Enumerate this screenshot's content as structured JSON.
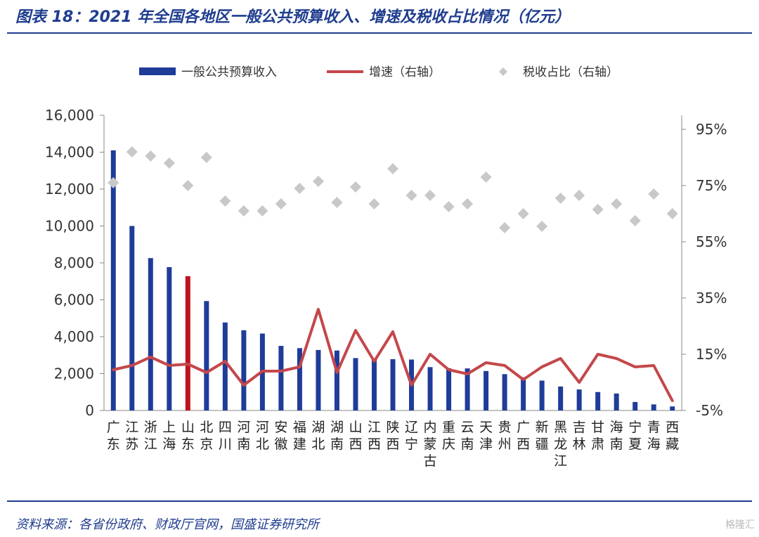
{
  "header": {
    "title": "图表 18：2021 年全国各地区一般公共预算收入、增速及税收占比情况（亿元）"
  },
  "footer": {
    "source": "资料来源：各省份政府、财政厅官网，国盛证券研究所",
    "watermark": "格隆汇"
  },
  "chart_data": {
    "type": "bar",
    "categories": [
      "广东",
      "江苏",
      "浙江",
      "上海",
      "山东",
      "北京",
      "四川",
      "河南",
      "河北",
      "安徽",
      "福建",
      "湖北",
      "湖南",
      "山西",
      "江西",
      "陕西",
      "辽宁",
      "内蒙古",
      "重庆",
      "云南",
      "天津",
      "贵州",
      "广西",
      "新疆",
      "黑龙江",
      "吉林",
      "甘肃",
      "海南",
      "宁夏",
      "青海",
      "西藏"
    ],
    "series": [
      {
        "name": "一般公共预算收入",
        "type": "bar",
        "axis": "left",
        "color": "#1f3c99",
        "values": [
          14100,
          10000,
          8260,
          7770,
          7280,
          5930,
          4770,
          4350,
          4170,
          3500,
          3380,
          3280,
          3250,
          2840,
          2810,
          2780,
          2760,
          2350,
          2290,
          2280,
          2140,
          1970,
          1800,
          1620,
          1300,
          1140,
          1000,
          920,
          460,
          330,
          220
        ]
      },
      {
        "name": "增速（右轴）",
        "type": "line",
        "axis": "right",
        "color": "#c4474a",
        "values": [
          9.5,
          11,
          14,
          11,
          11.5,
          8.5,
          12.5,
          4,
          9,
          9,
          10.5,
          31,
          8.5,
          23.5,
          12.5,
          23,
          4,
          15,
          9.5,
          8,
          12,
          11,
          6,
          10.5,
          13.5,
          5,
          15,
          13.5,
          10.5,
          11,
          -1.5
        ]
      },
      {
        "name": "税收占比（右轴）",
        "type": "scatter",
        "axis": "right",
        "color": "#c8c8c8",
        "values": [
          76,
          87,
          85.5,
          83,
          75,
          85,
          69.5,
          66,
          66,
          68.5,
          74,
          76.5,
          69,
          74.5,
          68.5,
          81,
          71.5,
          71.5,
          67.5,
          68.5,
          78,
          60,
          65,
          60.5,
          70.5,
          71.5,
          66.5,
          68.5,
          62.5,
          72,
          65
        ]
      }
    ],
    "highlight": {
      "category": "山东",
      "color": "#c0121e"
    },
    "yleft": {
      "lim": [
        0,
        16000
      ],
      "ticks": [
        "0",
        "2,000",
        "4,000",
        "6,000",
        "8,000",
        "10,000",
        "12,000",
        "14,000",
        "16,000"
      ]
    },
    "yright": {
      "lim": [
        -5,
        100
      ],
      "ticks": [
        "-5%",
        "15%",
        "35%",
        "55%",
        "75%",
        "95%"
      ]
    },
    "legend_position": "top"
  }
}
